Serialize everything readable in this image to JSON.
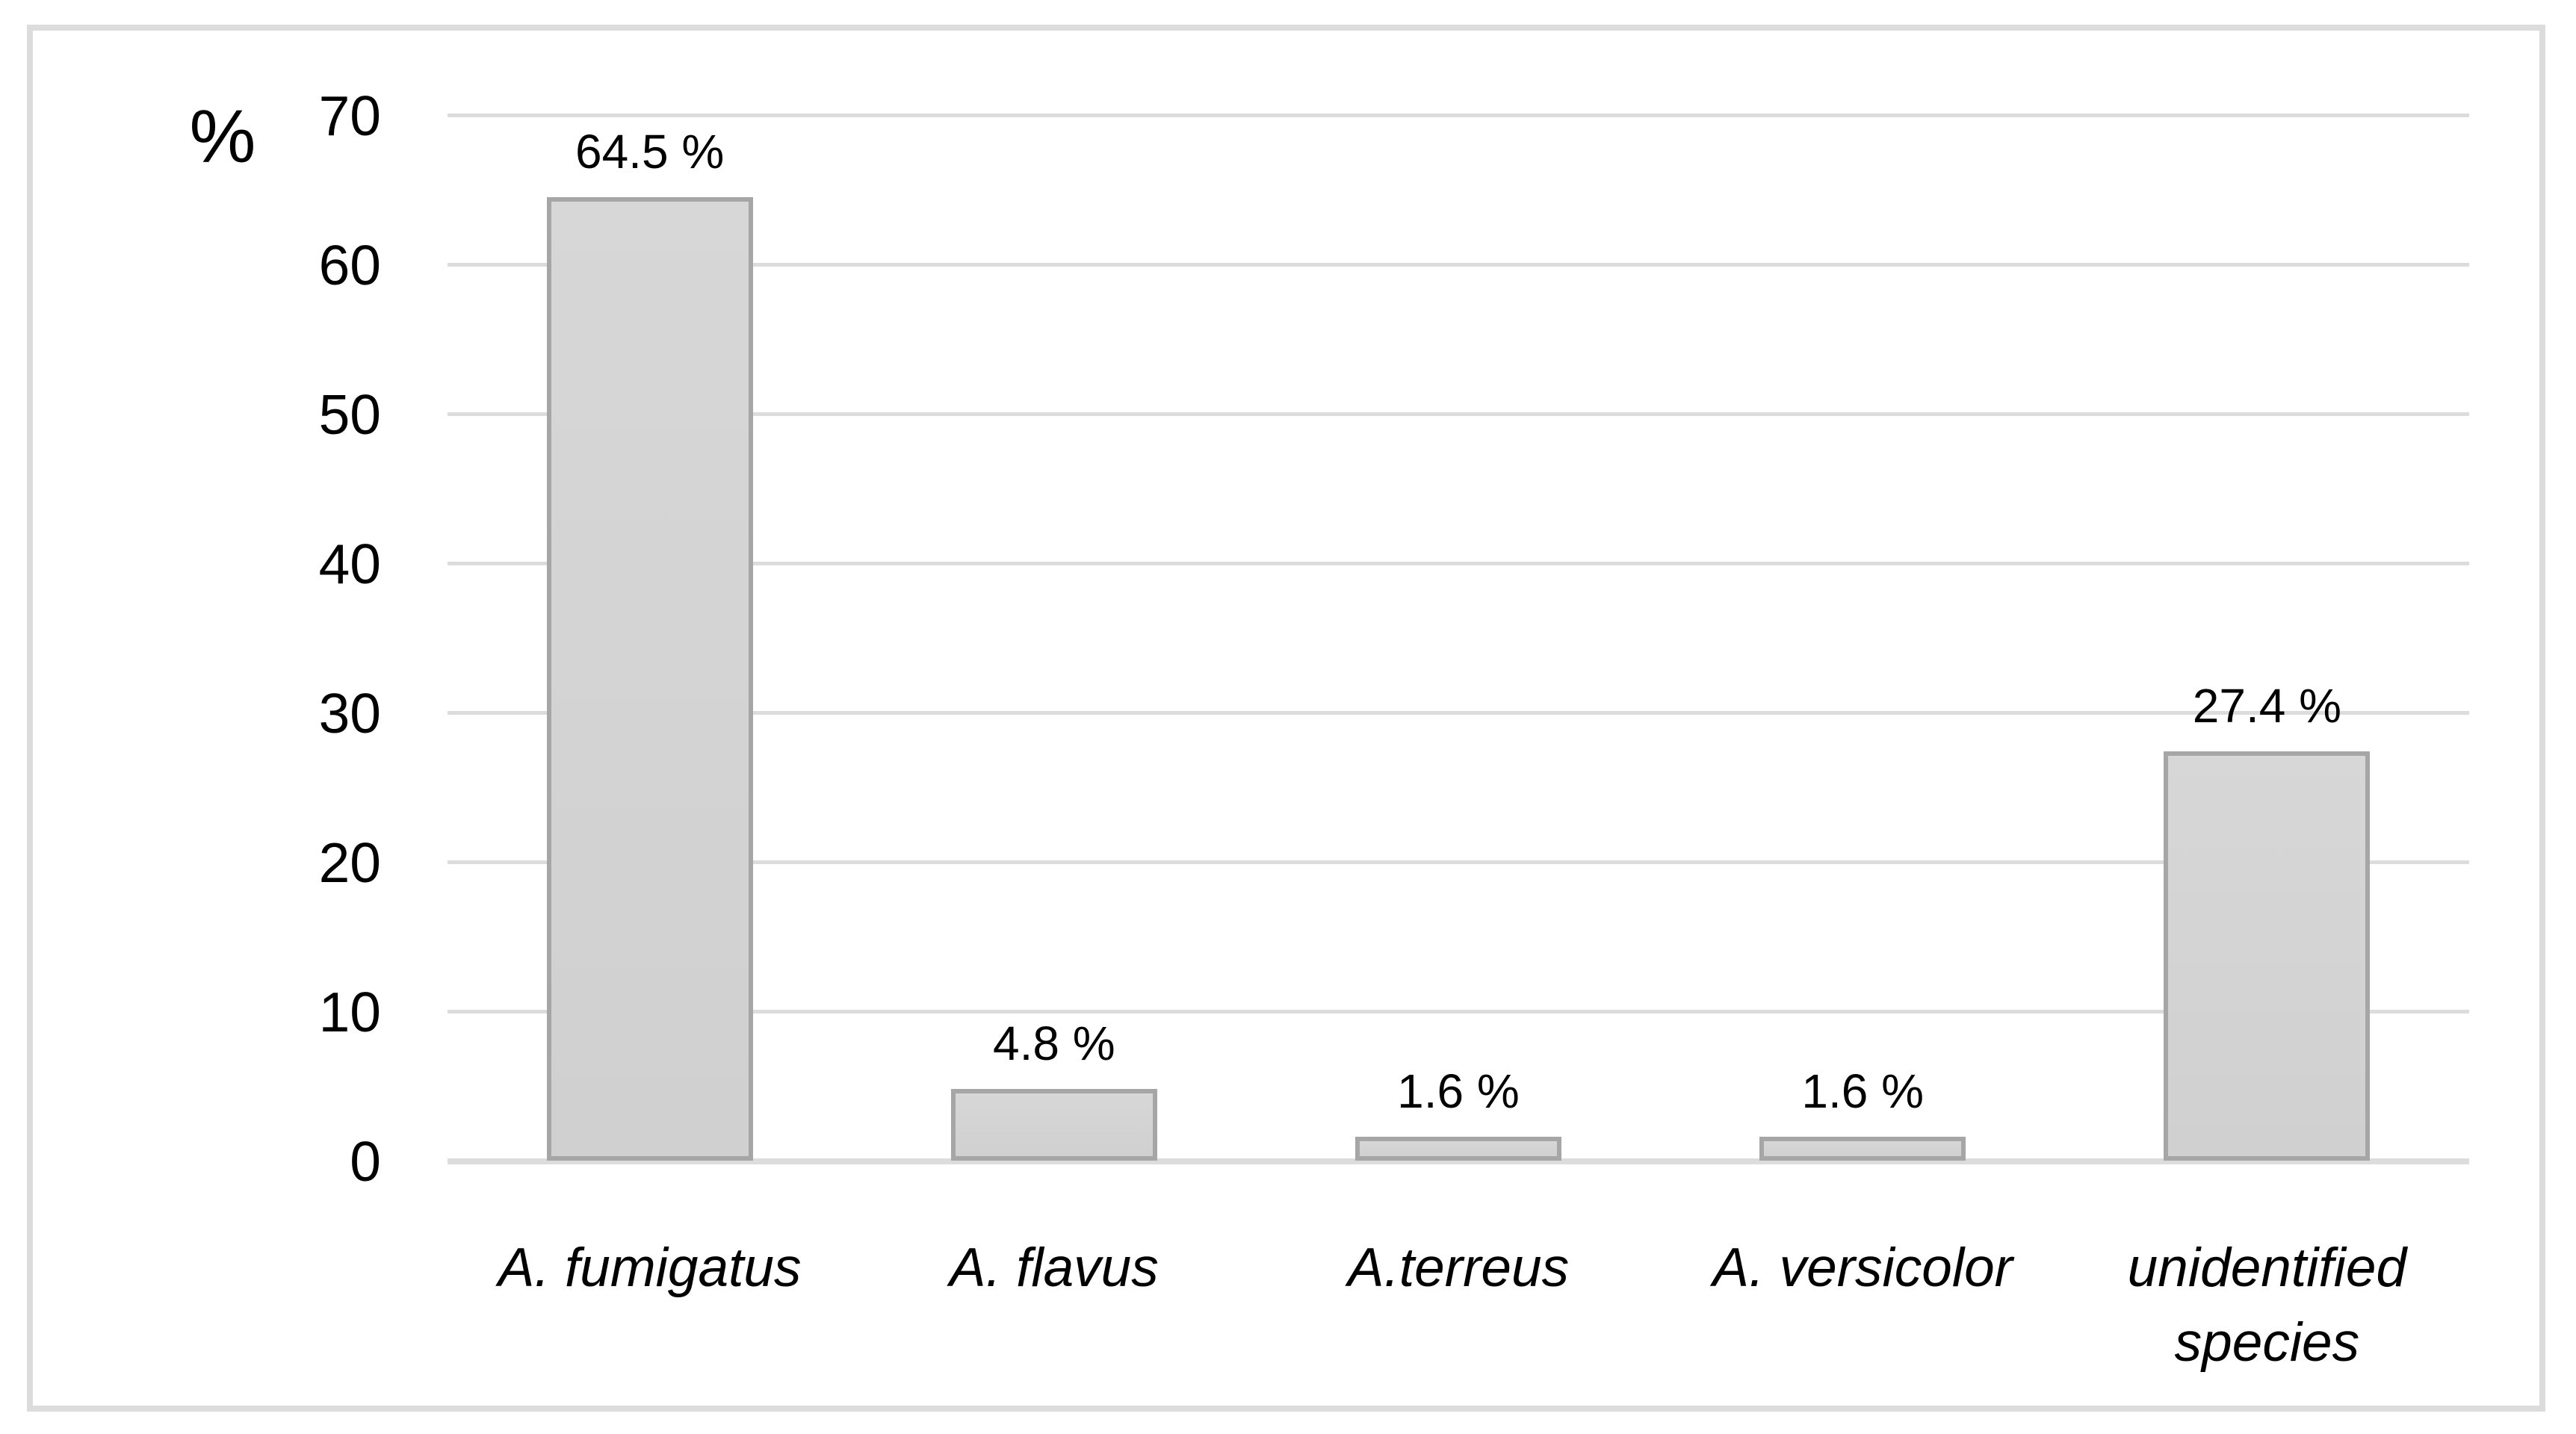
{
  "figure": {
    "background_color": "#ffffff",
    "frame_border_color": "#dcdcdc"
  },
  "chart_data": {
    "type": "bar",
    "title": "",
    "xlabel": "",
    "ylabel": "%",
    "categories": [
      "A. fumigatus",
      "A. flavus",
      "A.terreus",
      "A. versicolor",
      "unidentified species"
    ],
    "values": [
      64.5,
      4.8,
      1.6,
      1.6,
      27.4
    ],
    "bar_value_labels": [
      "64.5 %",
      "4.8 %",
      "1.6 %",
      "1.6 %",
      "27.4 %"
    ],
    "ylim": [
      0,
      70
    ],
    "yticks": [
      0,
      10,
      20,
      30,
      40,
      50,
      60,
      70
    ],
    "grid": "horizontal gridlines at every 10, on",
    "legend_position": "none",
    "bar_fill_color": "#d3d3d3",
    "bar_border_color": "#a6a6a6",
    "gridline_color": "#dcdcdc",
    "axis_line_color": "#dcdcdc",
    "text_color": "#000000",
    "category_label_style": "italic"
  }
}
